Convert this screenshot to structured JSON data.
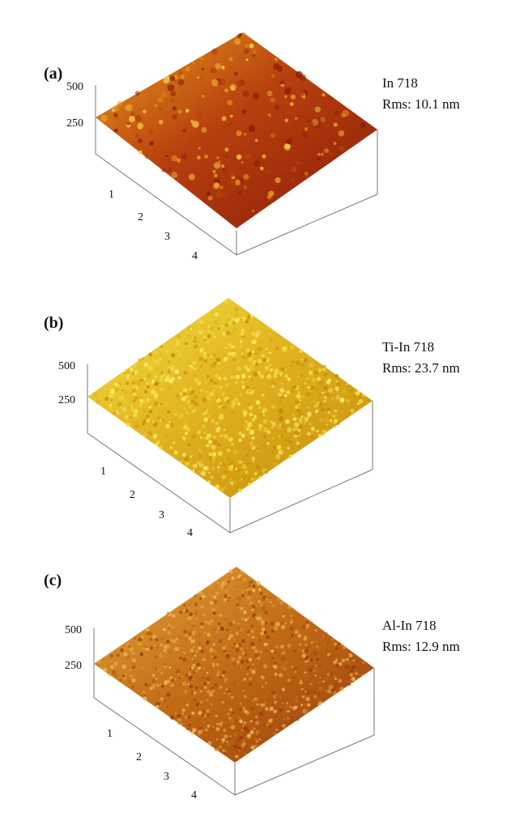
{
  "panels": [
    {
      "id": "a",
      "label": "(a)",
      "sample": "In 718",
      "rms": "Rms: 10.1 nm",
      "z_ticks": [
        "500",
        "250"
      ],
      "xy_ticks": [
        "1",
        "2",
        "3",
        "4"
      ],
      "colors": {
        "base": "#8a1c08",
        "mid": "#b8400e",
        "high": "#e8a020"
      }
    },
    {
      "id": "b",
      "label": "(b)",
      "sample": "Ti-In 718",
      "rms": "Rms: 23.7 nm",
      "z_ticks": [
        "500",
        "250"
      ],
      "xy_ticks": [
        "1",
        "2",
        "3",
        "4"
      ],
      "colors": {
        "base": "#c48a0a",
        "mid": "#e0b020",
        "high": "#f2e040"
      }
    },
    {
      "id": "c",
      "label": "(c)",
      "sample": "Al-In 718",
      "rms": "Rms: 12.9 nm",
      "z_ticks": [
        "500",
        "250"
      ],
      "xy_ticks": [
        "1",
        "2",
        "3",
        "4"
      ],
      "colors": {
        "base": "#9a3a0c",
        "mid": "#c06a16",
        "high": "#e6a83a"
      }
    }
  ]
}
